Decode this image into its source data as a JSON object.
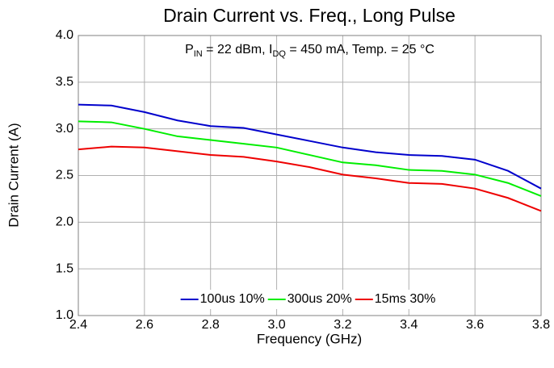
{
  "chart_data": {
    "type": "line",
    "title": "Drain Current vs. Freq., Long Pulse",
    "subtitle": [
      "P",
      "IN",
      " = 22 dBm, I",
      "DQ",
      " = 450 mA, Temp. = 25 °C"
    ],
    "xlabel": "Frequency (GHz)",
    "ylabel": "Drain Current (A)",
    "x": [
      2.4,
      2.5,
      2.6,
      2.7,
      2.8,
      2.9,
      3.0,
      3.1,
      3.2,
      3.3,
      3.4,
      3.5,
      3.6,
      3.7,
      3.8
    ],
    "series": [
      {
        "name": "100us 10%",
        "color": "#0000cc",
        "values": [
          3.26,
          3.25,
          3.18,
          3.09,
          3.03,
          3.01,
          2.94,
          2.87,
          2.8,
          2.75,
          2.72,
          2.71,
          2.67,
          2.55,
          2.36
        ]
      },
      {
        "name": "300us 20%",
        "color": "#00ee00",
        "values": [
          3.08,
          3.07,
          3.0,
          2.92,
          2.88,
          2.84,
          2.8,
          2.72,
          2.64,
          2.61,
          2.56,
          2.55,
          2.51,
          2.42,
          2.28
        ]
      },
      {
        "name": "15ms 30%",
        "color": "#ee0000",
        "values": [
          2.78,
          2.81,
          2.8,
          2.76,
          2.72,
          2.7,
          2.65,
          2.59,
          2.51,
          2.47,
          2.42,
          2.41,
          2.36,
          2.26,
          2.12
        ]
      }
    ],
    "xlim": [
      2.4,
      3.8
    ],
    "xticks": [
      2.4,
      2.6,
      2.8,
      3.0,
      3.2,
      3.4,
      3.6,
      3.8
    ],
    "ylim": [
      1.0,
      4.0
    ],
    "yticks": [
      {
        "value": 1,
        "label": "1.0"
      },
      1.5,
      {
        "value": 2,
        "label": "2.0"
      },
      2.5,
      {
        "value": 3,
        "label": "3.0"
      },
      3.5,
      {
        "value": 4,
        "label": "4.0"
      }
    ],
    "grid": true,
    "legend": "bottom"
  }
}
